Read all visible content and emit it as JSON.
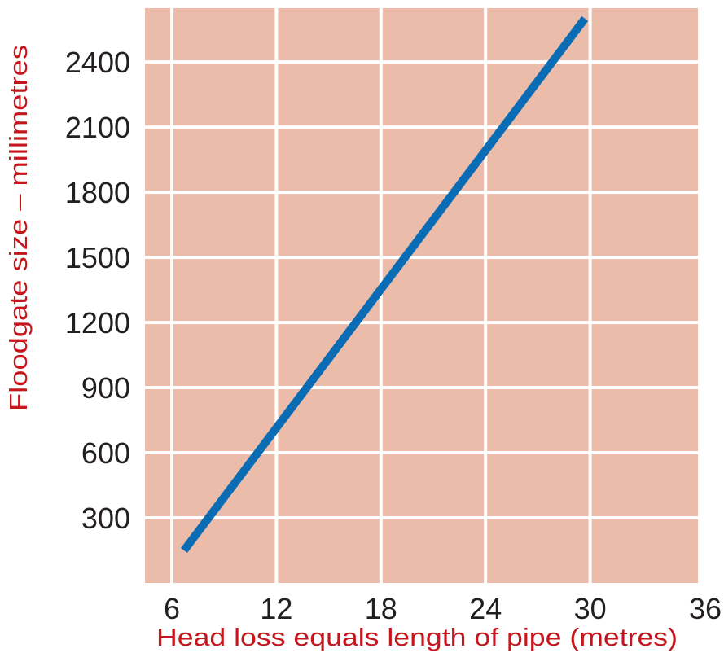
{
  "colors": {
    "plot_background": "#ebbcaa",
    "grid": "#ffffff",
    "line": "#0a6cb5",
    "tick_text": "#231f20",
    "axis_title": "#c4161c"
  },
  "chart_data": {
    "type": "line",
    "title": "",
    "xlabel": "Head loss equals length of pipe (metres)",
    "ylabel": "Floodgate size – millimetres",
    "xlim": [
      3,
      36
    ],
    "ylim": [
      0,
      2600
    ],
    "x_ticks": [
      6,
      12,
      18,
      24,
      30,
      36
    ],
    "x_tick_labels": [
      "6",
      "12",
      "18",
      "24",
      "30",
      "36"
    ],
    "y_ticks": [
      300,
      600,
      900,
      1200,
      1500,
      1800,
      2100,
      2400
    ],
    "y_tick_labels": [
      "300",
      "600",
      "900",
      "1200",
      "1500",
      "1800",
      "2100",
      "2400"
    ],
    "x_gridlines": [
      6,
      12,
      18,
      24,
      30
    ],
    "y_gridlines": [
      300,
      600,
      900,
      1200,
      1500,
      1800,
      2100,
      2400
    ],
    "grid": true,
    "series": [
      {
        "x": [
          6.7,
          29.7
        ],
        "y": [
          150,
          2600
        ]
      }
    ]
  }
}
